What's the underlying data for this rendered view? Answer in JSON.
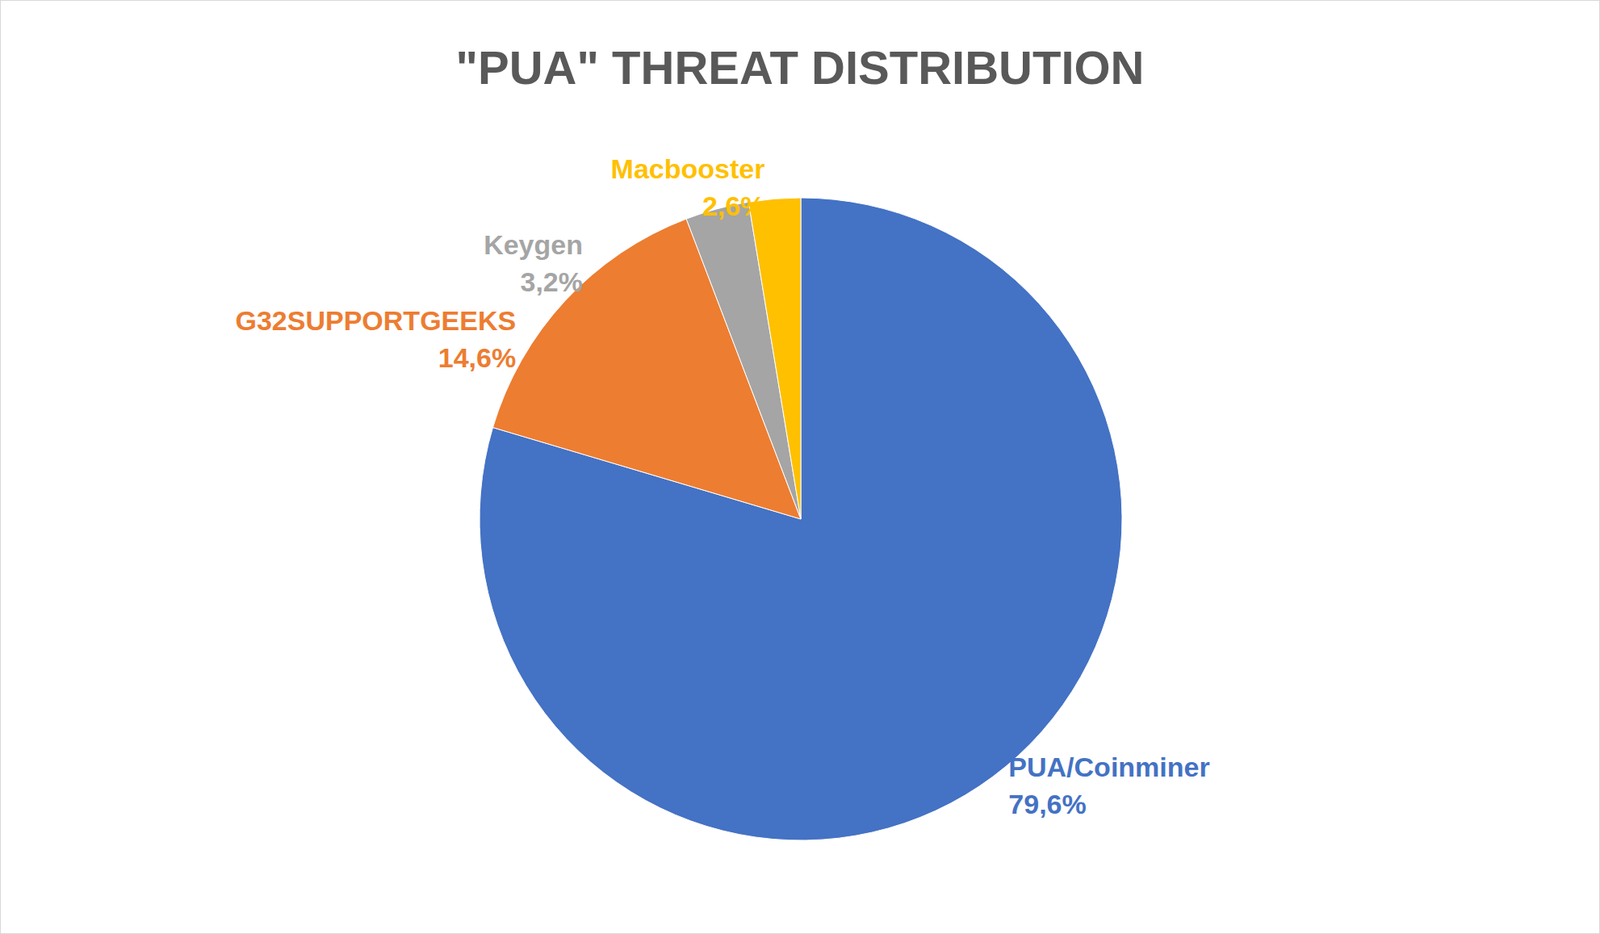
{
  "chart_data": {
    "type": "pie",
    "title": "\"PUA\" THREAT DISTRIBUTION",
    "categories": [
      "PUA/Coinminer",
      "G32SUPPORTGEEKS",
      "Keygen",
      "Macbooster"
    ],
    "values": [
      79.6,
      14.6,
      3.2,
      2.6
    ],
    "value_labels": [
      "79,6%",
      "14,6%",
      "3,2%",
      "2,6%"
    ],
    "colors": [
      "#4472c4",
      "#ed7d31",
      "#a5a5a5",
      "#ffc000"
    ],
    "data_labels": true
  }
}
